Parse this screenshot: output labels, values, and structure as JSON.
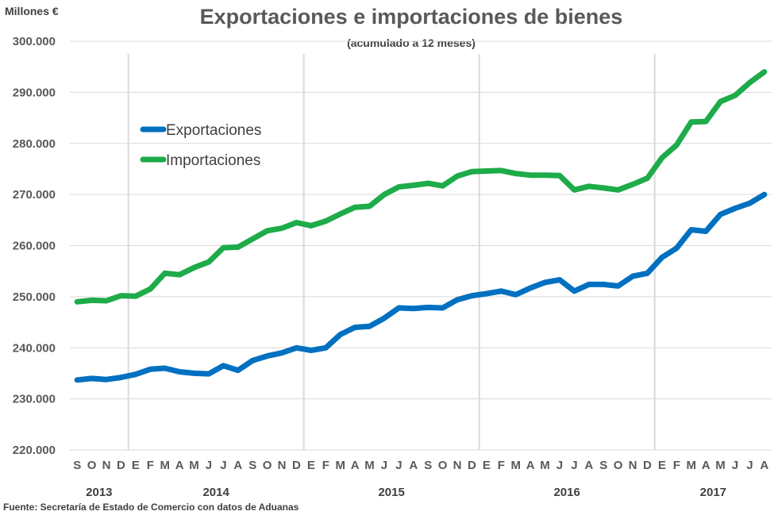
{
  "chart_data": {
    "type": "line",
    "title": "Exportaciones e importaciones de bienes",
    "subtitle": "(acumulado a 12 meses)",
    "unit_label": "Millones €",
    "source": "Fuente: Secretaría de Estado de Comercio con datos de Aduanas",
    "ylim": [
      220000,
      300000
    ],
    "ytick_values": [
      220000,
      230000,
      240000,
      250000,
      260000,
      270000,
      280000,
      290000,
      300000
    ],
    "ytick_labels": [
      "220.000",
      "230.000",
      "240.000",
      "250.000",
      "260.000",
      "270.000",
      "280.000",
      "290.000",
      "300.000"
    ],
    "x": [
      "S",
      "O",
      "N",
      "D",
      "E",
      "F",
      "M",
      "A",
      "M",
      "J",
      "J",
      "A",
      "S",
      "O",
      "N",
      "D",
      "E",
      "F",
      "M",
      "A",
      "M",
      "J",
      "J",
      "A",
      "S",
      "O",
      "N",
      "D",
      "E",
      "F",
      "M",
      "A",
      "M",
      "J",
      "J",
      "A",
      "S",
      "O",
      "N",
      "D",
      "E",
      "F",
      "M",
      "A",
      "M",
      "J",
      "J",
      "A"
    ],
    "years": [
      {
        "label": "2013",
        "start": 0,
        "end": 3
      },
      {
        "label": "2014",
        "start": 4,
        "end": 15
      },
      {
        "label": "2015",
        "start": 16,
        "end": 27
      },
      {
        "label": "2016",
        "start": 28,
        "end": 39
      },
      {
        "label": "2017",
        "start": 40,
        "end": 47
      }
    ],
    "year_separators_after": [
      3,
      15,
      27,
      39
    ],
    "legend_position": "upper-left",
    "series": [
      {
        "name": "Exportaciones",
        "color": "#0070C0",
        "values": [
          233700,
          234000,
          233800,
          234200,
          234800,
          235800,
          236000,
          235300,
          235000,
          234900,
          236500,
          235600,
          237500,
          238400,
          239000,
          240000,
          239500,
          240000,
          242600,
          244000,
          244200,
          245800,
          247800,
          247700,
          247900,
          247800,
          249400,
          250200,
          250600,
          251100,
          250400,
          251700,
          252800,
          253300,
          251100,
          252400,
          252400,
          252100,
          254000,
          254600,
          257700,
          259500,
          263100,
          262800,
          266100,
          267300,
          268300,
          270000
        ]
      },
      {
        "name": "Importaciones",
        "color": "#1EAB4A",
        "values": [
          249000,
          249300,
          249200,
          250200,
          250100,
          251500,
          254600,
          254300,
          255700,
          256800,
          259600,
          259700,
          261300,
          262900,
          263400,
          264500,
          263900,
          264800,
          266200,
          267500,
          267700,
          270000,
          271500,
          271800,
          272200,
          271700,
          273600,
          274500,
          274600,
          274700,
          274100,
          273800,
          273800,
          273700,
          270900,
          271600,
          271300,
          270900,
          272000,
          273200,
          277200,
          279700,
          284200,
          284300,
          288200,
          289400,
          291900,
          294000
        ]
      }
    ]
  }
}
